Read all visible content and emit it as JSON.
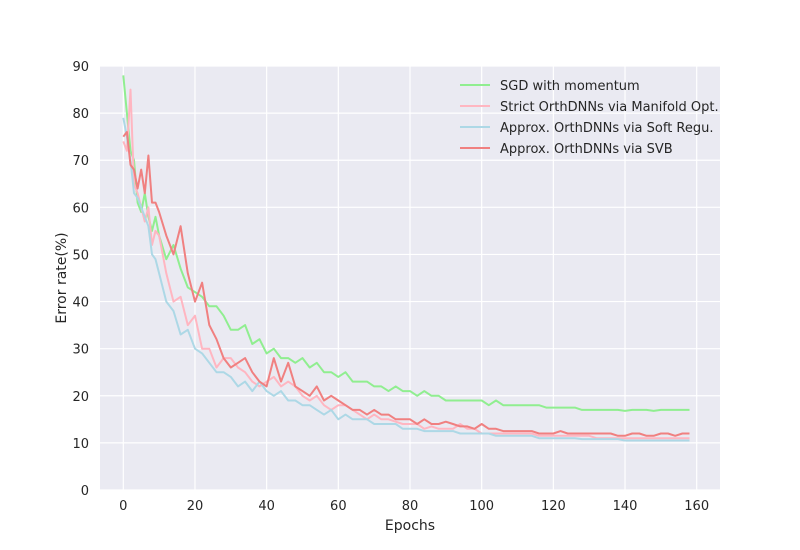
{
  "chart_data": {
    "type": "line",
    "xlabel": "Epochs",
    "ylabel": "Error rate(%)",
    "xlim": [
      -6.5,
      166.5
    ],
    "ylim": [
      0,
      90
    ],
    "xticks": [
      0,
      20,
      40,
      60,
      80,
      100,
      120,
      140,
      160
    ],
    "yticks": [
      0,
      10,
      20,
      30,
      40,
      50,
      60,
      70,
      80,
      90
    ],
    "grid": true,
    "background": "#eaeaf2",
    "legend_position": "top-right",
    "series": [
      {
        "name": "SGD with momentum",
        "color": "#90ee90",
        "x": [
          0,
          1,
          2,
          3,
          4,
          5,
          6,
          7,
          8,
          9,
          10,
          12,
          14,
          16,
          18,
          20,
          22,
          24,
          26,
          28,
          30,
          32,
          34,
          36,
          38,
          40,
          42,
          44,
          46,
          48,
          50,
          52,
          54,
          56,
          58,
          60,
          62,
          64,
          66,
          68,
          70,
          72,
          74,
          76,
          78,
          80,
          82,
          84,
          86,
          88,
          90,
          92,
          94,
          96,
          98,
          100,
          102,
          104,
          106,
          108,
          110,
          112,
          114,
          116,
          118,
          120,
          122,
          124,
          126,
          128,
          130,
          132,
          134,
          136,
          138,
          140,
          142,
          144,
          146,
          148,
          150,
          152,
          154,
          156,
          158
        ],
        "y": [
          88,
          80,
          72,
          70,
          61,
          59,
          63,
          58,
          55,
          58,
          54,
          49,
          52,
          47,
          43,
          42,
          41,
          39,
          39,
          37,
          34,
          34,
          35,
          31,
          32,
          29,
          30,
          28,
          28,
          27,
          28,
          26,
          27,
          25,
          25,
          24,
          25,
          23,
          23,
          23,
          22,
          22,
          21,
          22,
          21,
          21,
          20,
          21,
          20,
          20,
          19,
          19,
          19,
          19,
          19,
          19,
          18,
          19,
          18,
          18,
          18,
          18,
          18,
          18,
          17.5,
          17.5,
          17.5,
          17.5,
          17.5,
          17,
          17,
          17,
          17,
          17,
          17,
          16.8,
          17,
          17,
          17,
          16.8,
          17,
          17,
          17,
          17,
          17
        ]
      },
      {
        "name": "Strict OrthDNNs via Manifold Opt.",
        "color": "#ffb6c1",
        "x": [
          0,
          1,
          2,
          3,
          4,
          5,
          6,
          7,
          8,
          9,
          10,
          12,
          14,
          16,
          18,
          20,
          22,
          24,
          26,
          28,
          30,
          32,
          34,
          36,
          38,
          40,
          42,
          44,
          46,
          48,
          50,
          52,
          54,
          56,
          58,
          60,
          62,
          64,
          66,
          68,
          70,
          72,
          74,
          76,
          78,
          80,
          82,
          84,
          86,
          88,
          90,
          92,
          94,
          96,
          98,
          100,
          102,
          104,
          106,
          108,
          110,
          112,
          114,
          116,
          118,
          120,
          122,
          124,
          126,
          128,
          130,
          132,
          134,
          136,
          138,
          140,
          142,
          144,
          146,
          148,
          150,
          152,
          154,
          156,
          158
        ],
        "y": [
          74,
          72,
          85,
          65,
          63,
          60,
          57,
          60,
          52,
          55,
          54,
          46,
          40,
          41,
          35,
          37,
          30,
          30,
          26,
          28,
          28,
          26,
          25,
          23,
          22,
          23,
          24,
          22,
          23,
          22,
          20,
          19,
          20,
          18,
          17,
          18,
          18,
          17,
          16,
          15,
          16,
          15,
          15,
          14.5,
          14,
          14,
          14,
          13,
          13.5,
          13,
          13,
          13,
          14,
          13,
          13,
          12,
          12,
          12,
          12,
          12,
          12,
          12,
          12,
          11.5,
          11.5,
          11.5,
          11.5,
          11.5,
          11.5,
          11.5,
          11.5,
          11,
          11,
          11,
          11,
          11,
          11,
          11,
          11,
          11,
          11,
          11,
          11,
          11,
          11
        ]
      },
      {
        "name": "Approx. OrthDNNs via Soft Regu.",
        "color": "#add8e6",
        "x": [
          0,
          1,
          2,
          3,
          4,
          5,
          6,
          7,
          8,
          9,
          10,
          12,
          14,
          16,
          18,
          20,
          22,
          24,
          26,
          28,
          30,
          32,
          34,
          36,
          38,
          40,
          42,
          44,
          46,
          48,
          50,
          52,
          54,
          56,
          58,
          60,
          62,
          64,
          66,
          68,
          70,
          72,
          74,
          76,
          78,
          80,
          82,
          84,
          86,
          88,
          90,
          92,
          94,
          96,
          98,
          100,
          102,
          104,
          106,
          108,
          110,
          112,
          114,
          116,
          118,
          120,
          122,
          124,
          126,
          128,
          130,
          132,
          134,
          136,
          138,
          140,
          142,
          144,
          146,
          148,
          150,
          152,
          154,
          156,
          158
        ],
        "y": [
          79,
          75,
          70,
          63,
          62,
          60,
          58,
          56,
          50,
          49,
          46,
          40,
          38,
          33,
          34,
          30,
          29,
          27,
          25,
          25,
          24,
          22,
          23,
          21,
          23,
          21,
          20,
          21,
          19,
          19,
          18,
          18,
          17,
          16,
          17,
          15,
          16,
          15,
          15,
          15,
          14,
          14,
          14,
          14,
          13,
          13,
          13,
          12.5,
          12.5,
          12.5,
          12.5,
          12.5,
          12,
          12,
          12,
          12,
          12,
          11.5,
          11.5,
          11.5,
          11.5,
          11.5,
          11.5,
          11,
          11,
          11,
          11,
          11,
          11,
          10.8,
          10.8,
          10.8,
          10.8,
          10.8,
          10.8,
          10.5,
          10.5,
          10.5,
          10.5,
          10.5,
          10.5,
          10.5,
          10.5,
          10.5,
          10.5
        ]
      },
      {
        "name": "Approx. OrthDNNs via SVB",
        "color": "#f08080",
        "x": [
          0,
          1,
          2,
          3,
          4,
          5,
          6,
          7,
          8,
          9,
          10,
          12,
          14,
          16,
          18,
          20,
          22,
          24,
          26,
          28,
          30,
          32,
          34,
          36,
          38,
          40,
          42,
          44,
          46,
          48,
          50,
          52,
          54,
          56,
          58,
          60,
          62,
          64,
          66,
          68,
          70,
          72,
          74,
          76,
          78,
          80,
          82,
          84,
          86,
          88,
          90,
          92,
          94,
          96,
          98,
          100,
          102,
          104,
          106,
          108,
          110,
          112,
          114,
          116,
          118,
          120,
          122,
          124,
          126,
          128,
          130,
          132,
          134,
          136,
          138,
          140,
          142,
          144,
          146,
          148,
          150,
          152,
          154,
          156,
          158
        ],
        "y": [
          75,
          76,
          69,
          68,
          64,
          68,
          63,
          71,
          61,
          61,
          59,
          54,
          50,
          56,
          46,
          40,
          44,
          35,
          32,
          28,
          26,
          27,
          28,
          25,
          23,
          22,
          28,
          23,
          27,
          22,
          21,
          20,
          22,
          19,
          20,
          19,
          18,
          17,
          17,
          16,
          17,
          16,
          16,
          15,
          15,
          15,
          14,
          15,
          14,
          14,
          14.5,
          14,
          13.5,
          13.5,
          13,
          14,
          13,
          13,
          12.5,
          12.5,
          12.5,
          12.5,
          12.5,
          12,
          12,
          12,
          12.5,
          12,
          12,
          12,
          12,
          12,
          12,
          12,
          11.5,
          11.5,
          12,
          12,
          11.5,
          11.5,
          12,
          12,
          11.5,
          12,
          12
        ]
      }
    ]
  }
}
